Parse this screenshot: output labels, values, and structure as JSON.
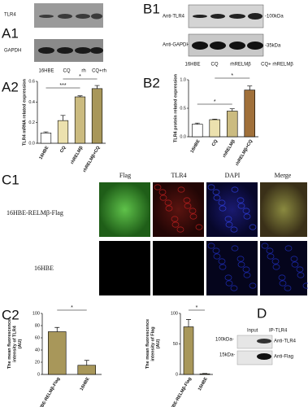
{
  "panel_letters": [
    "A1",
    "B1",
    "A2",
    "B2",
    "C1",
    "C2",
    "D"
  ],
  "a1_blot": {
    "bands": [
      "TLR4",
      "GAPDH"
    ],
    "lanes": [
      "16HBE",
      "CQ",
      "rh",
      "CQ+rh"
    ]
  },
  "b1_blot": {
    "bands": [
      "Anti-TLR4",
      "Anti-GAPDH"
    ],
    "markers": [
      "-100kDa",
      "-35kDa"
    ],
    "lanes": [
      "16HBE",
      "CQ",
      "rhRELMβ",
      "CQ+ rhRELMβ"
    ]
  },
  "c1_images": {
    "columns": [
      "Flag",
      "TLR4",
      "DAPI",
      "Merge"
    ],
    "rows": [
      "16HBE-RELMβ-Flag",
      "16HBE"
    ]
  },
  "d_blot": {
    "lanes": [
      "Input",
      "IP-TLR4"
    ],
    "markers": [
      "100kDa-",
      "15kDa-"
    ],
    "bands": [
      "Anti-TLR4",
      "Anti-Flag"
    ]
  },
  "chart_data": [
    {
      "type": "bar",
      "y_label": [
        "TLR4 mRNA related expression"
      ],
      "categories": [
        "16HBE",
        "CQ",
        "rhRELMβ",
        "rhRELMβ+CQ"
      ],
      "values": [
        0.1,
        0.22,
        0.45,
        0.53
      ],
      "errors": [
        0.01,
        0.05,
        0.01,
        0.03
      ],
      "colors": [
        "#ffffff",
        "#ece1ae",
        "#cbbb80",
        "#a8975a"
      ],
      "ylim": [
        0,
        0.6
      ],
      "yticks": [
        {
          "value": 0,
          "label": "0.0"
        },
        {
          "value": 0.2,
          "label": "0.2"
        },
        {
          "value": 0.4,
          "label": "0.4"
        },
        {
          "value": 0.6,
          "label": "0.6"
        }
      ],
      "annotations": [
        "***",
        "*"
      ]
    },
    {
      "type": "bar",
      "y_label": [
        "TLR4 protein related expression"
      ],
      "categories": [
        "16HBE",
        "CQ",
        "rhRELMβ",
        "rhRELMβ+CQ"
      ],
      "values": [
        0.22,
        0.3,
        0.45,
        0.82
      ],
      "errors": [
        0.02,
        0.01,
        0.04,
        0.07
      ],
      "colors": [
        "#ffffff",
        "#ece1ae",
        "#cbbb80",
        "#a0703a"
      ],
      "ylim": [
        0,
        1.0
      ],
      "yticks": [
        {
          "value": 0,
          "label": "0.0"
        },
        {
          "value": 0.5,
          "label": "0.5"
        },
        {
          "value": 1.0,
          "label": "1.0"
        }
      ],
      "annotations": [
        "*",
        "*"
      ]
    },
    {
      "type": "bar",
      "y_label": [
        "The mean fluorescence",
        "intensity of TLR4",
        "(AU)"
      ],
      "categories": [
        "16HBE-RELMβ-Flag",
        "16HBE"
      ],
      "values": [
        70,
        15
      ],
      "errors": [
        7,
        8
      ],
      "colors": [
        "#a8975a",
        "#a8975a"
      ],
      "ylim": [
        0,
        100
      ],
      "yticks": [
        0,
        20,
        40,
        60,
        80,
        100
      ],
      "annotations": [
        "*"
      ]
    },
    {
      "type": "bar",
      "y_label": [
        "The mean fluorescence",
        "intensity of Flag",
        "(AU)"
      ],
      "categories": [
        "16HBE-RELMβ-Flag",
        "16HBE"
      ],
      "values": [
        78,
        1
      ],
      "errors": [
        12,
        0.5
      ],
      "colors": [
        "#a8975a",
        "#a8975a"
      ],
      "ylim": [
        0,
        100
      ],
      "yticks": [
        0,
        50,
        100
      ],
      "annotations": [
        "*"
      ]
    }
  ]
}
